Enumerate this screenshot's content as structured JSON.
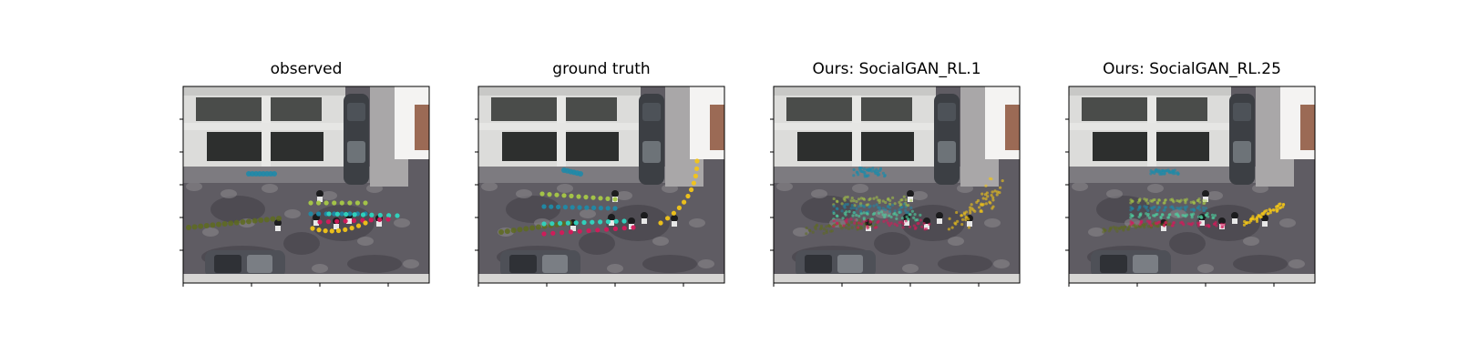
{
  "figure": {
    "panels": [
      {
        "title": "observed",
        "mode": "observed"
      },
      {
        "title": "ground truth",
        "mode": "truth"
      },
      {
        "title": "Ours: SocialGAN_RL.1",
        "mode": "pred"
      },
      {
        "title": "Ours: SocialGAN_RL.25",
        "mode": "pred_tight"
      }
    ],
    "colors": {
      "olive": "#5e6b1f",
      "teal": "#1f8aa8",
      "lime": "#a7c847",
      "cyan": "#2ed6c0",
      "mint": "#4fd2a2",
      "crimson": "#d4195a",
      "gold": "#f2c418"
    }
  }
}
